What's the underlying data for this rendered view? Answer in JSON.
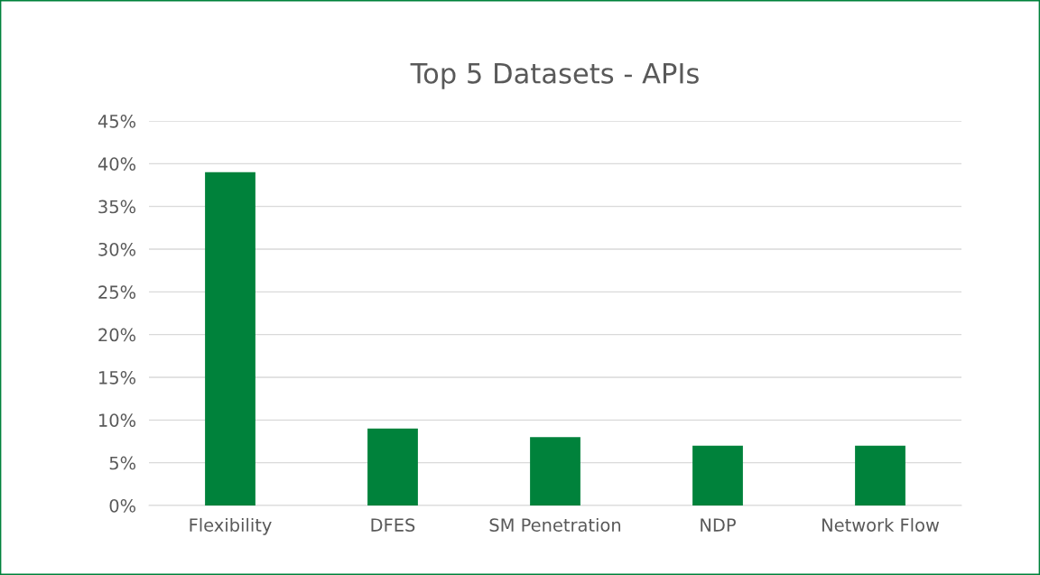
{
  "chart_data": {
    "type": "bar",
    "title": "Top 5 Datasets - APIs",
    "categories": [
      "Flexibility",
      "DFES",
      "SM Penetration",
      "NDP",
      "Network Flow"
    ],
    "values": [
      39,
      9,
      8,
      7,
      7
    ],
    "color": "#00823b",
    "ylim": [
      0,
      45
    ],
    "yticks": [
      {
        "value": 0,
        "label": "0%"
      },
      {
        "value": 5,
        "label": "5%"
      },
      {
        "value": 10,
        "label": "10%"
      },
      {
        "value": 15,
        "label": "15%"
      },
      {
        "value": 20,
        "label": "20%"
      },
      {
        "value": 25,
        "label": "25%"
      },
      {
        "value": 30,
        "label": "30%"
      },
      {
        "value": 35,
        "label": "35%"
      },
      {
        "value": 40,
        "label": "40%"
      },
      {
        "value": 45,
        "label": "45%"
      }
    ],
    "grid": "y"
  }
}
